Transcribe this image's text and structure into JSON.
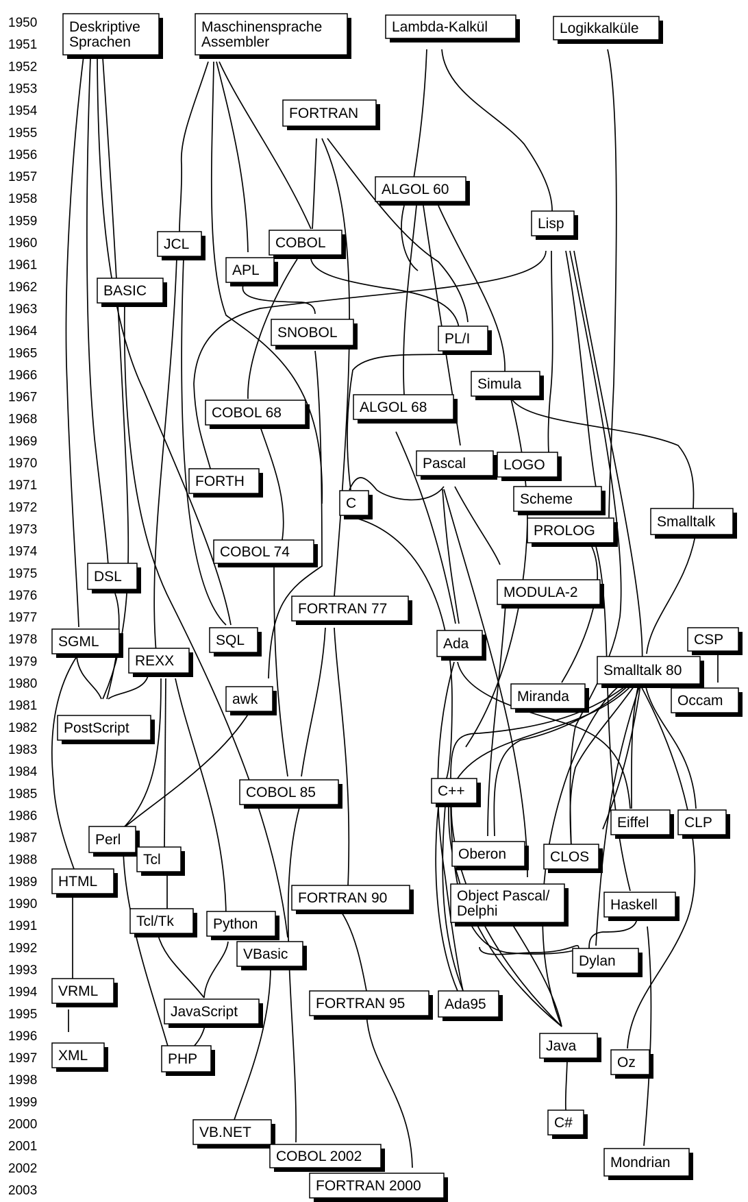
{
  "years": [
    "1950",
    "1951",
    "1952",
    "1953",
    "1954",
    "1955",
    "1956",
    "1957",
    "1958",
    "1959",
    "1960",
    "1961",
    "1962",
    "1963",
    "1964",
    "1965",
    "1966",
    "1967",
    "1968",
    "1969",
    "1970",
    "1971",
    "1972",
    "1973",
    "1974",
    "1975",
    "1976",
    "1977",
    "1978",
    "1979",
    "1980",
    "1981",
    "1982",
    "1983",
    "1984",
    "1985",
    "1986",
    "1987",
    "1988",
    "1989",
    "1990",
    "1991",
    "1992",
    "1993",
    "1994",
    "1995",
    "1996",
    "1997",
    "1998",
    "1999",
    "2000",
    "2001",
    "2002",
    "2003"
  ],
  "languages": {
    "deskriptive": [
      "Deskriptive",
      "Sprachen"
    ],
    "maschinensprache": [
      "Maschinensprache",
      "Assembler"
    ],
    "lambda": [
      "Lambda-Kalkül"
    ],
    "logik": [
      "Logikkalküle"
    ],
    "fortran": [
      "FORTRAN"
    ],
    "algol60": [
      "ALGOL 60"
    ],
    "lisp": [
      "Lisp"
    ],
    "jcl": [
      "JCL"
    ],
    "cobol": [
      "COBOL"
    ],
    "apl": [
      "APL"
    ],
    "basic": [
      "BASIC"
    ],
    "snobol": [
      "SNOBOL"
    ],
    "pli": [
      "PL/I"
    ],
    "simula": [
      "Simula"
    ],
    "cobol68": [
      "COBOL 68"
    ],
    "algol68": [
      "ALGOL 68"
    ],
    "pascal": [
      "Pascal"
    ],
    "logo": [
      "LOGO"
    ],
    "forth": [
      "FORTH"
    ],
    "c": [
      "C"
    ],
    "scheme": [
      "Scheme"
    ],
    "smalltalk": [
      "Smalltalk"
    ],
    "prolog": [
      "PROLOG"
    ],
    "cobol74": [
      "COBOL 74"
    ],
    "dsl": [
      "DSL"
    ],
    "modula2": [
      "MODULA-2"
    ],
    "fortran77": [
      "FORTRAN 77"
    ],
    "sgml": [
      "SGML"
    ],
    "sql": [
      "SQL"
    ],
    "ada": [
      "Ada"
    ],
    "csp": [
      "CSP"
    ],
    "rexx": [
      "REXX"
    ],
    "smalltalk80": [
      "Smalltalk 80"
    ],
    "miranda": [
      "Miranda"
    ],
    "awk": [
      "awk"
    ],
    "occam": [
      "Occam"
    ],
    "postscript": [
      "PostScript"
    ],
    "cobol85": [
      "COBOL 85"
    ],
    "cpp": [
      "C++"
    ],
    "eiffel": [
      "Eiffel"
    ],
    "clp": [
      "CLP"
    ],
    "perl": [
      "Perl"
    ],
    "tcl": [
      "Tcl"
    ],
    "oberon": [
      "Oberon"
    ],
    "clos": [
      "CLOS"
    ],
    "html": [
      "HTML"
    ],
    "fortran90": [
      "FORTRAN 90"
    ],
    "objectpascal": [
      "Object Pascal/",
      "Delphi"
    ],
    "haskell": [
      "Haskell"
    ],
    "tcltk": [
      "Tcl/Tk"
    ],
    "python": [
      "Python"
    ],
    "vbasic": [
      "VBasic"
    ],
    "dylan": [
      "Dylan"
    ],
    "vrml": [
      "VRML"
    ],
    "javascript": [
      "JavaScript"
    ],
    "fortran95": [
      "FORTRAN 95"
    ],
    "ada95": [
      "Ada95"
    ],
    "java": [
      "Java"
    ],
    "xml": [
      "XML"
    ],
    "php": [
      "PHP"
    ],
    "oz": [
      "Oz"
    ],
    "csharp": [
      "C#"
    ],
    "vbnet": [
      "VB.NET"
    ],
    "cobol2002": [
      "COBOL 2002"
    ],
    "mondrian": [
      "Mondrian"
    ],
    "fortran2000": [
      "FORTRAN 2000"
    ]
  }
}
